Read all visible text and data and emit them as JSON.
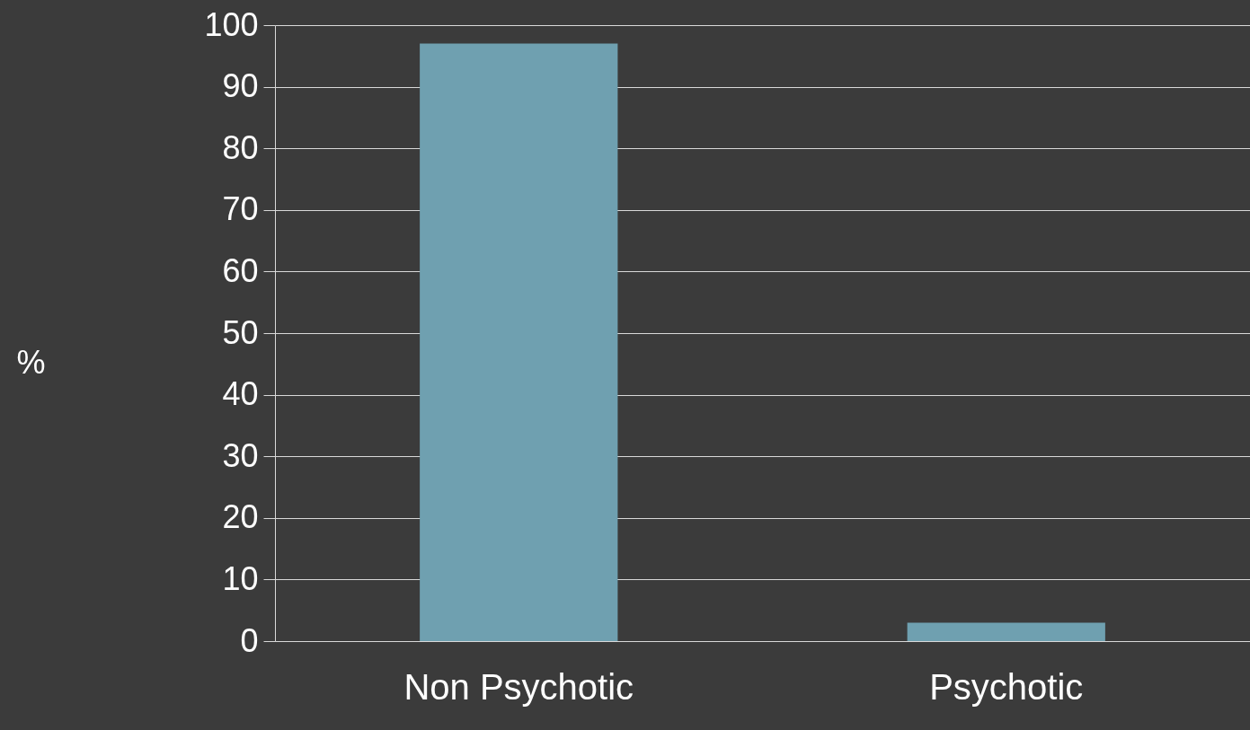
{
  "chart_data": {
    "type": "bar",
    "ylabel": "%",
    "categories": [
      "Non Psychotic",
      "Psychotic"
    ],
    "values": [
      97,
      3
    ],
    "color": "#6fa0b0",
    "ylim": [
      0,
      100
    ],
    "yticks": [
      0,
      10,
      20,
      30,
      40,
      50,
      60,
      70,
      80,
      90,
      100
    ],
    "grid": "y"
  }
}
